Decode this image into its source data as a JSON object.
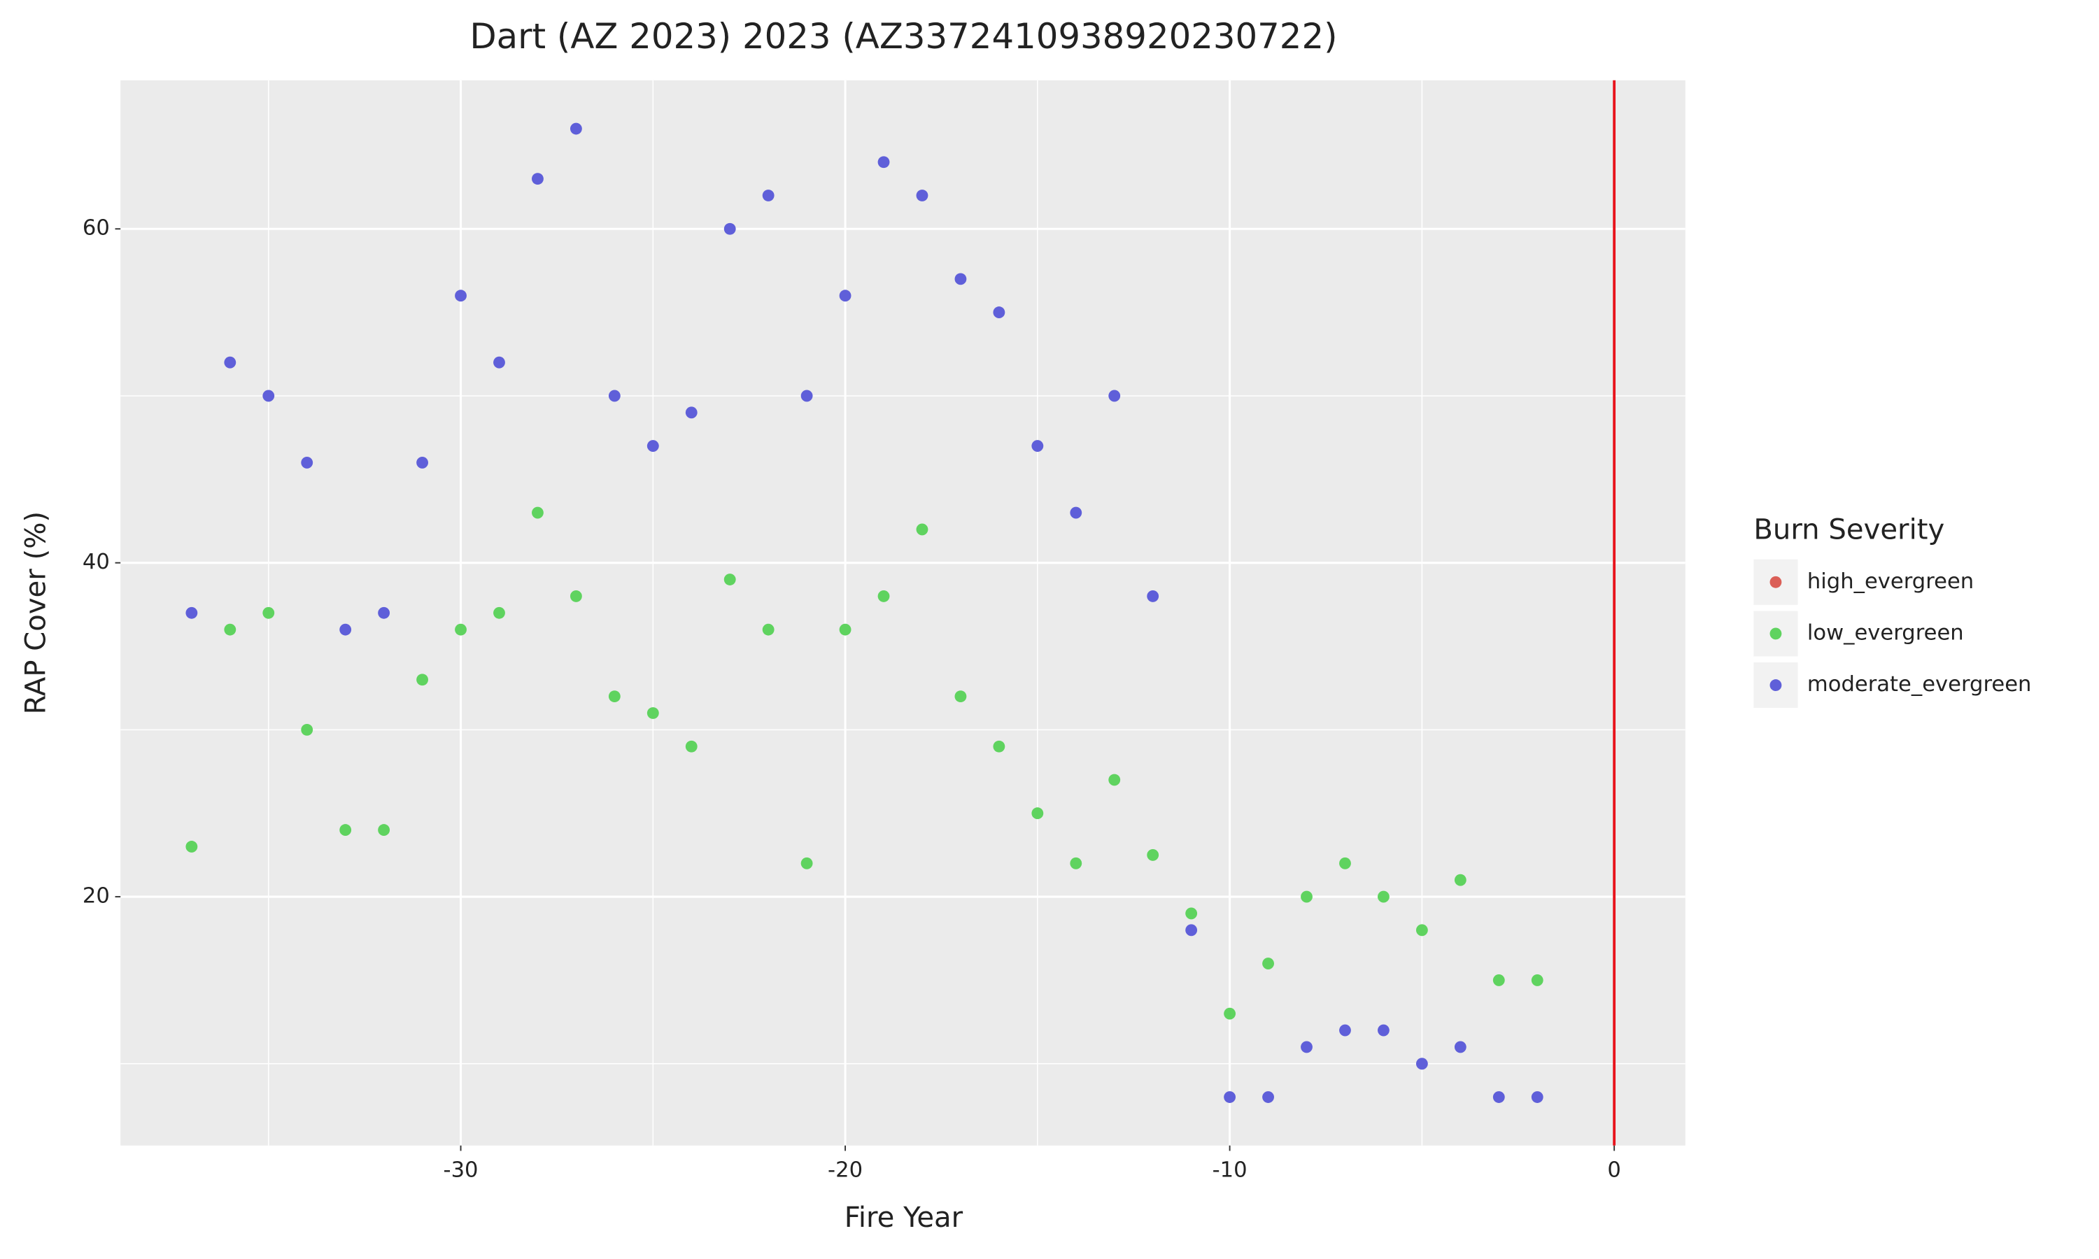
{
  "chart_data": {
    "type": "scatter",
    "title": "Dart (AZ 2023) 2023 (AZ3372410938920230722)",
    "x_label": "Fire Year",
    "y_label": "RAP Cover (%)",
    "legend_title": "Burn Severity",
    "legend_position": "right",
    "xlim": [
      -38.85,
      1.85
    ],
    "ylim": [
      5.1,
      68.9
    ],
    "xticks": [
      -30,
      -20,
      -10,
      0
    ],
    "yticks": [
      20,
      40,
      60
    ],
    "x_minor_ticks": [
      -35,
      -25,
      -15,
      -5
    ],
    "y_minor_ticks": [
      10,
      30,
      50
    ],
    "grid": true,
    "vline": {
      "x": 0,
      "color": "#e8141c"
    },
    "series": [
      {
        "name": "high_evergreen",
        "color": "#db5f57",
        "x": [],
        "values": []
      },
      {
        "name": "low_evergreen",
        "color": "#5fd35f",
        "x": [
          -37,
          -36,
          -35,
          -34,
          -33,
          -32,
          -31,
          -30,
          -29,
          -28,
          -27,
          -26,
          -25,
          -24,
          -23,
          -22,
          -21,
          -20,
          -19,
          -18,
          -17,
          -16,
          -15,
          -14,
          -13,
          -12,
          -11,
          -10,
          -9,
          -8,
          -7,
          -6,
          -5,
          -4,
          -3,
          -2
        ],
        "values": [
          23,
          36,
          37,
          30,
          24,
          24,
          33,
          36,
          37,
          43,
          38,
          32,
          31,
          29,
          39,
          36,
          22,
          36,
          38,
          42,
          32,
          29,
          25,
          22,
          27,
          22.5,
          19,
          13,
          16,
          20,
          22,
          20,
          18,
          21,
          15,
          15
        ]
      },
      {
        "name": "moderate_evergreen",
        "color": "#5f5fd9",
        "x": [
          -37,
          -36,
          -35,
          -34,
          -33,
          -32,
          -31,
          -30,
          -29,
          -28,
          -27,
          -26,
          -25,
          -24,
          -23,
          -22,
          -21,
          -20,
          -19,
          -18,
          -17,
          -16,
          -15,
          -14,
          -13,
          -12,
          -11,
          -10,
          -9,
          -8,
          -7,
          -6,
          -5,
          -4,
          -3,
          -2
        ],
        "values": [
          37,
          52,
          50,
          46,
          36,
          37,
          46,
          56,
          52,
          63,
          66,
          50,
          47,
          49,
          60,
          62,
          50,
          56,
          64,
          62,
          57,
          55,
          47,
          43,
          50,
          38,
          18,
          8,
          8,
          11,
          12,
          12,
          10,
          11,
          8,
          8
        ]
      }
    ]
  }
}
